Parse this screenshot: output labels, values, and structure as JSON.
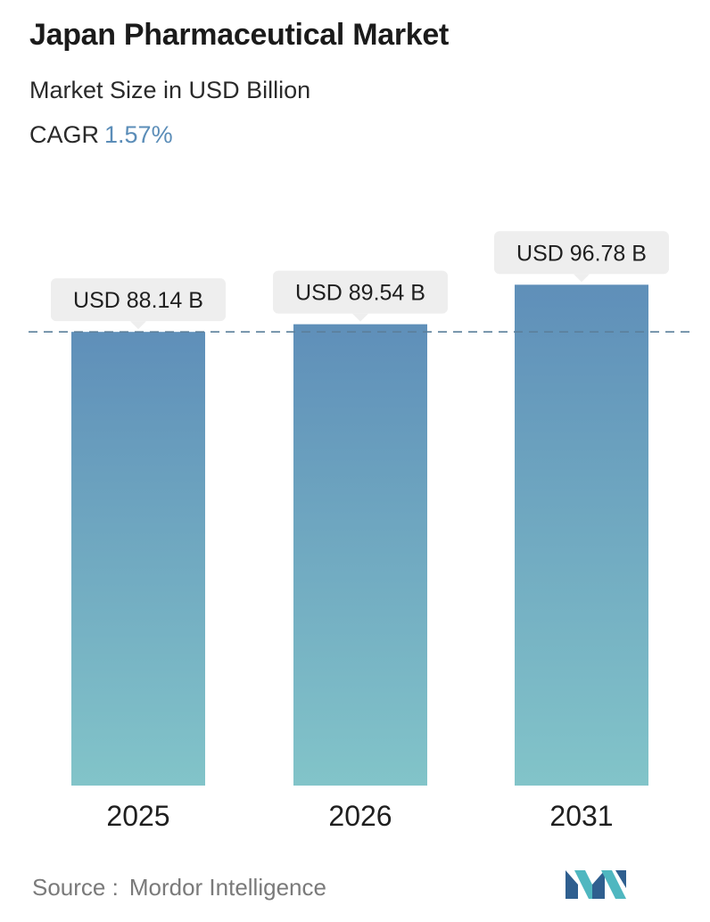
{
  "header": {
    "title": "Japan Pharmaceutical Market",
    "subtitle": "Market Size in USD Billion",
    "cagr_label": "CAGR",
    "cagr_value": "1.57%"
  },
  "footer": {
    "source_label": "Source :",
    "source_name": "Mordor Intelligence"
  },
  "colors": {
    "bar_top": "#5f8fb9",
    "bar_bottom": "#82c4c9",
    "cagr_accent": "#5b8db8",
    "reference_line": "#5b7f9b",
    "label_bg": "#eeeeee",
    "logo_dark": "#2f5f8f",
    "logo_light": "#4fb7c0"
  },
  "logo": {
    "icon": "mordor-intelligence-logo-icon"
  },
  "chart_data": {
    "type": "bar",
    "categories": [
      "2025",
      "2026",
      "2031"
    ],
    "values": [
      88.14,
      89.54,
      96.78
    ],
    "data_labels": [
      "USD 88.14 B",
      "USD 89.54 B",
      "USD 96.78 B"
    ],
    "reference_line": {
      "value": 88.14,
      "style": "dashed"
    },
    "ylim": [
      0,
      100
    ],
    "grid": false,
    "legend": "none",
    "xlabel": "",
    "ylabel": ""
  }
}
